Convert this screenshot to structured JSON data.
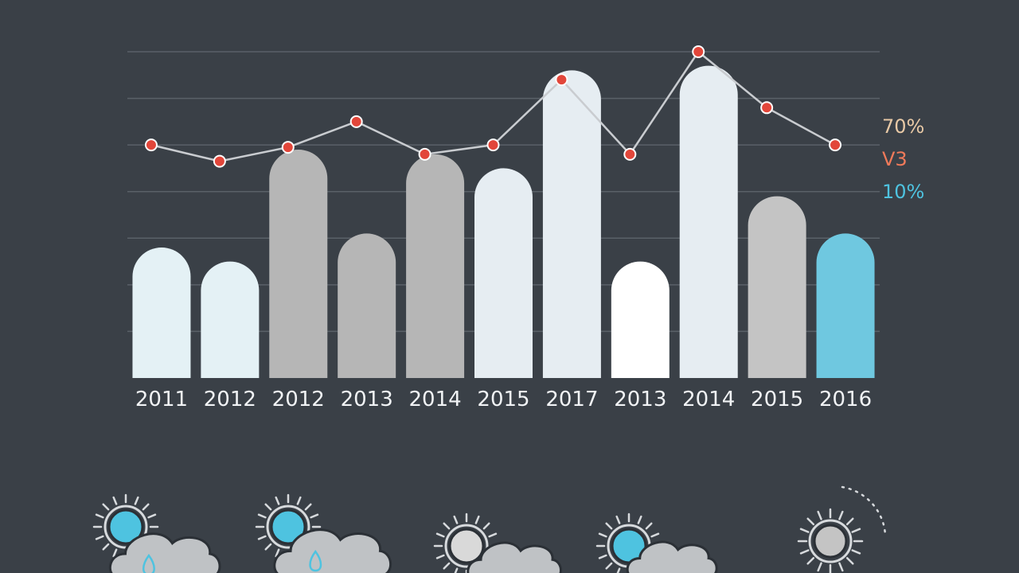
{
  "chart_data": {
    "type": "bar",
    "categories": [
      "2011",
      "2012",
      "2012",
      "2013",
      "2014",
      "2015",
      "2017",
      "2013",
      "2014",
      "2015",
      "2016"
    ],
    "series": [
      {
        "values": [
          28,
          25,
          49,
          31,
          48,
          45,
          66,
          25,
          67,
          39,
          31
        ]
      },
      {
        "values": [
          50,
          46.5,
          49.5,
          55,
          48,
          50,
          64,
          48,
          70,
          58,
          50
        ]
      }
    ],
    "ylim": [
      0,
      70
    ],
    "grid": true,
    "legend_entries": [
      {
        "label": "70%",
        "color": "#e8c9a6"
      },
      {
        "label": "V3",
        "color": "#f07a5a"
      },
      {
        "label": "10%",
        "color": "#4ec3e0"
      }
    ],
    "bar_colors": [
      "#e4f1f5",
      "#e4f1f5",
      "#b6b6b6",
      "#b6b6b6",
      "#b6b6b6",
      "#e6edf2",
      "#e6edf2",
      "#ffffff",
      "#e6edf2",
      "#c4c4c4",
      "#6fc8e0"
    ],
    "line_color": "#c9ccd0",
    "marker_color": "#e2463a"
  },
  "weather_icons": [
    {
      "name": "sun-cloud-rain-icon"
    },
    {
      "name": "sun-cloud-rain-icon"
    },
    {
      "name": "sun-cloud-icon"
    },
    {
      "name": "sun-cloud-icon"
    },
    {
      "name": "sun-icon"
    }
  ]
}
